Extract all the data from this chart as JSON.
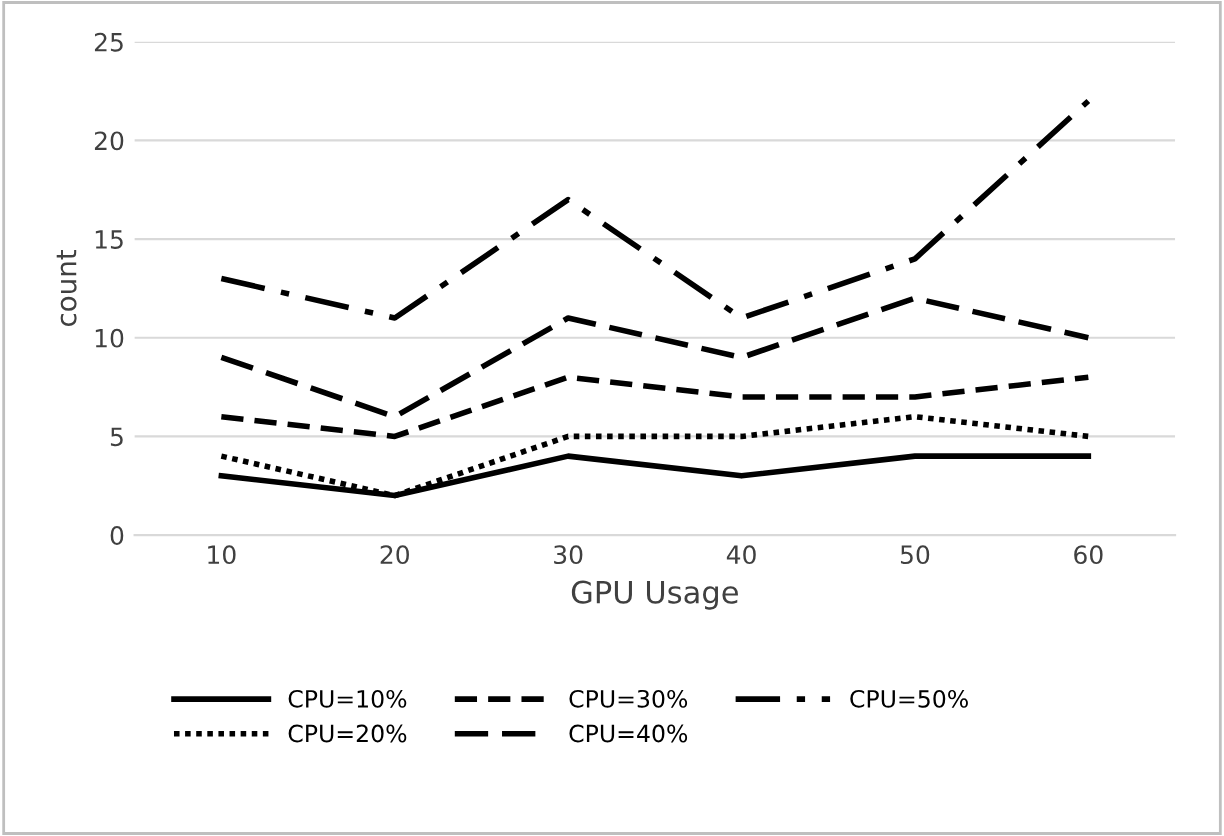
{
  "chart_data": {
    "type": "line",
    "xlabel": "GPU Usage",
    "ylabel": "count",
    "categories": [
      "10",
      "20",
      "30",
      "40",
      "50",
      "60"
    ],
    "series": [
      {
        "name": "CPU=10%",
        "color": "#000000",
        "line_style": "solid",
        "values": [
          3,
          2,
          4,
          3,
          4,
          4
        ]
      },
      {
        "name": "CPU=20%",
        "color": "#000000",
        "line_style": "dotted",
        "values": [
          4,
          2,
          5,
          5,
          6,
          5
        ]
      },
      {
        "name": "CPU=30%",
        "color": "#000000",
        "line_style": "dashed",
        "values": [
          6,
          5,
          8,
          7,
          7,
          8
        ]
      },
      {
        "name": "CPU=40%",
        "color": "#000000",
        "line_style": "longdashed",
        "values": [
          9,
          6,
          11,
          9,
          12,
          10
        ]
      },
      {
        "name": "CPU=50%",
        "color": "#000000",
        "line_style": "dashdot",
        "values": [
          13,
          11,
          17,
          11,
          14,
          22
        ]
      }
    ],
    "ylim": [
      0,
      25
    ],
    "yticks": [
      0,
      5,
      10,
      15,
      20,
      25
    ],
    "grid": "y",
    "legend": "bottom",
    "marker": "none"
  }
}
